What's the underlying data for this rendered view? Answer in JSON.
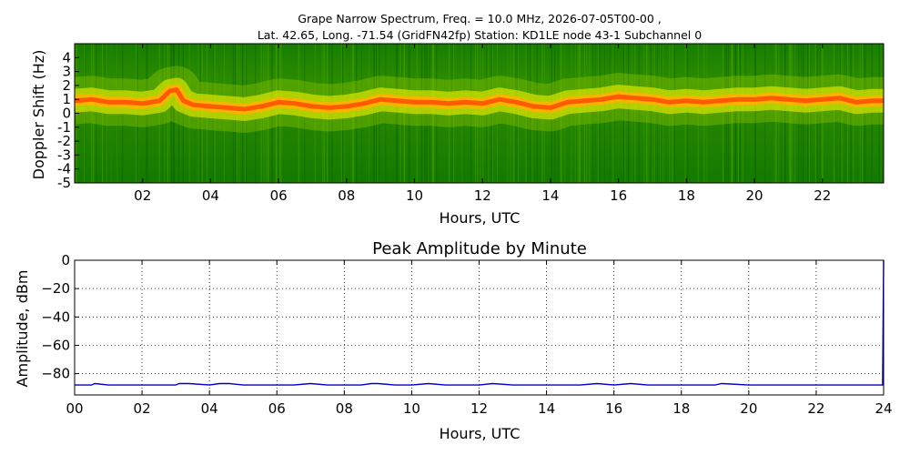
{
  "figure": {
    "title_line1": "Grape Narrow Spectrum, Freq. = 10.0 MHz, 2026-07-05T00-00 ,",
    "title_line2": "Lat.  42.65, Long. -71.54 (GridFN42fp) Station: KD1LE node 43-1 Subchannel 0"
  },
  "colors": {
    "background": "#ffffff",
    "spectrogram_low": "#0b7a00",
    "spectrogram_mid": "#f2f000",
    "spectrogram_peak": "#ff5a00",
    "amplitude_line": "#0000c8",
    "grid": "#000000"
  },
  "chart_data": [
    {
      "type": "heatmap",
      "title": "",
      "xlabel": "Hours, UTC",
      "ylabel": "Doppler Shift (Hz)",
      "xlim": [
        0,
        23.8
      ],
      "ylim": [
        -5,
        5
      ],
      "xticks": [
        "02",
        "04",
        "06",
        "08",
        "10",
        "12",
        "14",
        "16",
        "18",
        "20",
        "22"
      ],
      "xtick_values": [
        2,
        4,
        6,
        8,
        10,
        12,
        14,
        16,
        18,
        20,
        22
      ],
      "yticks": [
        "4",
        "3",
        "2",
        "1",
        "0",
        "-1",
        "-2",
        "-3",
        "-4",
        "-5"
      ],
      "ytick_values": [
        4,
        3,
        2,
        1,
        0,
        -1,
        -2,
        -3,
        -4,
        -5
      ],
      "grid": false,
      "ridge": {
        "hours": [
          0,
          0.5,
          1,
          1.5,
          2,
          2.5,
          2.8,
          3,
          3.2,
          3.5,
          4,
          4.5,
          5,
          5.5,
          6,
          6.5,
          7,
          7.5,
          8,
          8.5,
          9,
          9.5,
          10,
          10.5,
          11,
          11.5,
          12,
          12.5,
          13,
          13.5,
          14,
          14.5,
          15,
          15.5,
          16,
          16.5,
          17,
          17.5,
          18,
          18.5,
          19,
          19.5,
          20,
          20.5,
          21,
          21.5,
          22,
          22.5,
          23,
          23.5,
          23.8
        ],
        "doppler_hz": [
          0.9,
          1.0,
          0.8,
          0.8,
          0.7,
          0.9,
          1.6,
          1.7,
          0.9,
          0.6,
          0.5,
          0.4,
          0.3,
          0.5,
          0.8,
          0.7,
          0.5,
          0.4,
          0.5,
          0.7,
          1.0,
          0.9,
          0.8,
          0.8,
          0.7,
          0.8,
          0.7,
          1.0,
          0.8,
          0.5,
          0.4,
          0.8,
          0.9,
          1.0,
          1.2,
          1.1,
          1.0,
          0.8,
          0.9,
          0.8,
          0.9,
          1.0,
          1.0,
          1.1,
          1.0,
          0.9,
          1.0,
          1.1,
          0.8,
          0.9,
          0.9
        ]
      }
    },
    {
      "type": "line",
      "title": "Peak Amplitude by Minute",
      "xlabel": "Hours, UTC",
      "ylabel": "Amplitude, dBm",
      "xlim": [
        0,
        24
      ],
      "ylim": [
        -95,
        0
      ],
      "xticks": [
        "00",
        "02",
        "04",
        "06",
        "08",
        "10",
        "12",
        "14",
        "16",
        "18",
        "20",
        "22",
        "24"
      ],
      "xtick_values": [
        0,
        2,
        4,
        6,
        8,
        10,
        12,
        14,
        16,
        18,
        20,
        22,
        24
      ],
      "yticks": [
        "0",
        "−20",
        "−40",
        "−60",
        "−80"
      ],
      "ytick_values": [
        0,
        -20,
        -40,
        -60,
        -80
      ],
      "grid": true,
      "series": [
        {
          "x": [
            0,
            0.5,
            0.6,
            1,
            1.5,
            2,
            2.5,
            3,
            3.1,
            3.4,
            4,
            4.3,
            4.6,
            5,
            6,
            6.5,
            7,
            7.5,
            8,
            8.5,
            8.8,
            9,
            9.5,
            10,
            10.5,
            11,
            11.5,
            12,
            12.4,
            13,
            13.5,
            14,
            14.5,
            15,
            15.5,
            16,
            16.5,
            17,
            17.5,
            18,
            18.5,
            19,
            19.2,
            20,
            20.5,
            21,
            21.5,
            22,
            22.5,
            23,
            23.5,
            23.9,
            23.97,
            24
          ],
          "y": [
            -88,
            -88,
            -87,
            -88,
            -88,
            -88,
            -88,
            -88,
            -87,
            -87,
            -88,
            -87,
            -87,
            -88,
            -88,
            -88,
            -87,
            -88,
            -88,
            -88,
            -87,
            -87,
            -88,
            -88,
            -87,
            -88,
            -88,
            -88,
            -87,
            -88,
            -88,
            -88,
            -88,
            -88,
            -87,
            -88,
            -87,
            -88,
            -88,
            -88,
            -88,
            -88,
            -87,
            -88,
            -88,
            -88,
            -88,
            -88,
            -88,
            -88,
            -88,
            -88,
            -88,
            0
          ]
        }
      ]
    }
  ]
}
